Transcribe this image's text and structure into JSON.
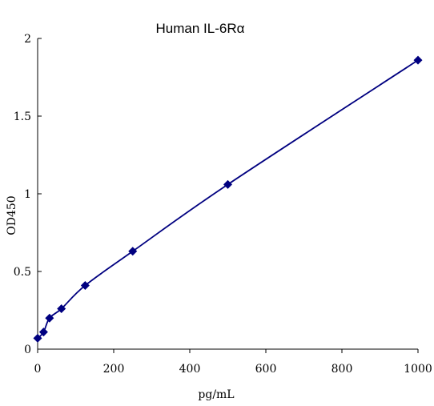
{
  "chart_data": {
    "type": "line",
    "title": "Human IL-6Rα",
    "xlabel": "pg/mL",
    "ylabel": "OD450",
    "xlim": [
      0,
      1000
    ],
    "ylim": [
      0,
      2
    ],
    "xticks": [
      0,
      200,
      400,
      600,
      800,
      1000
    ],
    "yticks": [
      0,
      0.5,
      1,
      1.5,
      2
    ],
    "xtick_labels": [
      "0",
      "200",
      "400",
      "600",
      "800",
      "1000"
    ],
    "ytick_labels": [
      "0",
      "0.5",
      "1",
      "1.5",
      "2"
    ],
    "grid": false,
    "legend": "none",
    "series": [
      {
        "color": "#000080",
        "marker": "diamond",
        "x": [
          0,
          15.6,
          31.25,
          62.5,
          125,
          250,
          500,
          1000
        ],
        "y": [
          0.07,
          0.11,
          0.2,
          0.26,
          0.41,
          0.63,
          1.06,
          1.86
        ]
      }
    ]
  }
}
